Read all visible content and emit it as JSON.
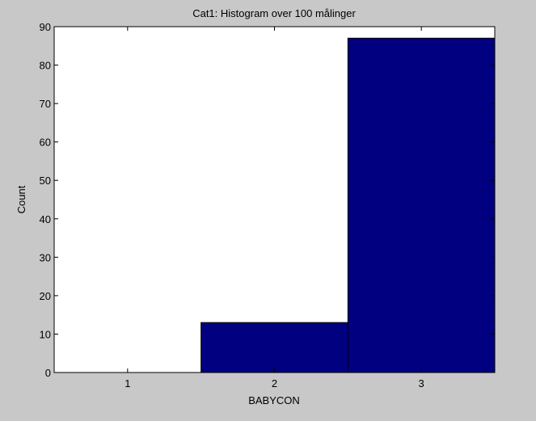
{
  "chart_data": {
    "type": "bar",
    "title": "Cat1: Histogram over 100 målinger",
    "xlabel": "BABYCON",
    "ylabel": "Count",
    "categories": [
      "1",
      "2",
      "3"
    ],
    "values": [
      0,
      13,
      87
    ],
    "ylim": [
      0,
      90
    ],
    "yticks": [
      0,
      10,
      20,
      30,
      40,
      50,
      60,
      70,
      80,
      90
    ],
    "grid": false,
    "colors": {
      "bar_fill": "#000080",
      "bar_edge": "#000000",
      "axes_bg": "#ffffff",
      "figure_bg": "#c8c8c8"
    }
  }
}
